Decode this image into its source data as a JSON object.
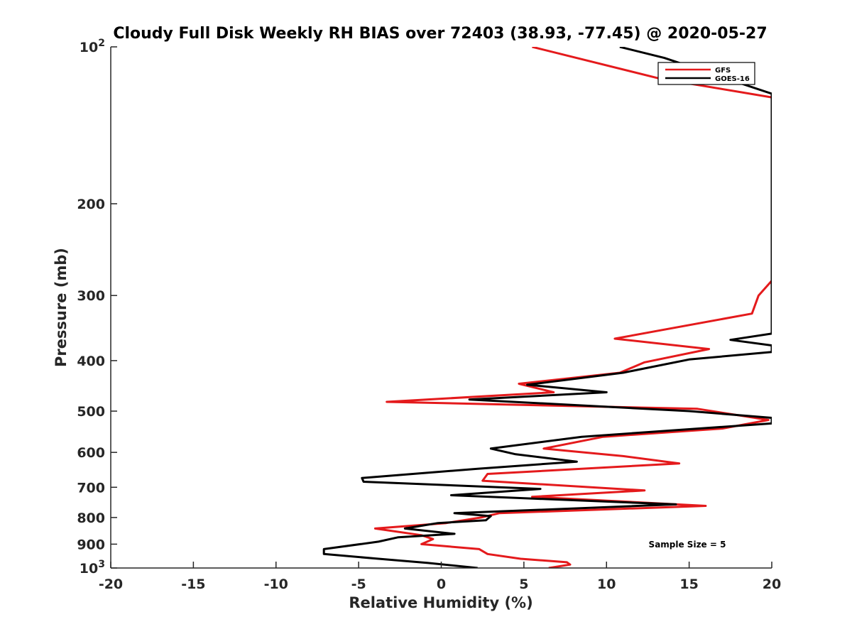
{
  "chart_data": {
    "type": "line",
    "title": "Cloudy Full Disk Weekly RH BIAS over 72403 (38.93, -77.45) @ 2020-05-27",
    "xlabel": "Relative Humidity (%)",
    "ylabel": "Pressure (mb)",
    "xlim": [
      -20,
      20
    ],
    "ylim": [
      100,
      1000
    ],
    "yscale": "log",
    "y_reversed": true,
    "grid": false,
    "legend_position": "top-right",
    "x_ticks": [
      -20,
      -15,
      -10,
      -5,
      0,
      5,
      10,
      15,
      20
    ],
    "x_tick_labels": [
      "-20",
      "-15",
      "-10",
      "-5",
      "0",
      "5",
      "10",
      "15",
      "20"
    ],
    "y_ticks": [
      100,
      200,
      300,
      400,
      500,
      600,
      700,
      800,
      900,
      1000
    ],
    "y_tick_labels": [
      {
        "base": "10",
        "exp": "2"
      },
      {
        "base": "200",
        "exp": ""
      },
      {
        "base": "300",
        "exp": ""
      },
      {
        "base": "400",
        "exp": ""
      },
      {
        "base": "500",
        "exp": ""
      },
      {
        "base": "600",
        "exp": ""
      },
      {
        "base": "700",
        "exp": ""
      },
      {
        "base": "800",
        "exp": ""
      },
      {
        "base": "900",
        "exp": ""
      },
      {
        "base": "10",
        "exp": "3"
      }
    ],
    "annotation": "Sample Size = 5",
    "series": [
      {
        "name": "GFS",
        "color": "#e41a1c",
        "points": [
          [
            5.5,
            100
          ],
          [
            13.2,
            115
          ],
          [
            20.0,
            125
          ],
          [
            20.0,
            281
          ],
          [
            19.2,
            300
          ],
          [
            18.8,
            325
          ],
          [
            10.5,
            363
          ],
          [
            16.2,
            380
          ],
          [
            12.3,
            403
          ],
          [
            10.8,
            422
          ],
          [
            4.7,
            443
          ],
          [
            6.8,
            460
          ],
          [
            -3.3,
            480
          ],
          [
            15.5,
            495
          ],
          [
            19.8,
            520
          ],
          [
            17.0,
            540
          ],
          [
            9.8,
            560
          ],
          [
            6.2,
            590
          ],
          [
            11.0,
            610
          ],
          [
            14.4,
            630
          ],
          [
            2.8,
            660
          ],
          [
            2.5,
            680
          ],
          [
            12.3,
            710
          ],
          [
            5.5,
            730
          ],
          [
            16.0,
            760
          ],
          [
            3.5,
            785
          ],
          [
            2.4,
            800
          ],
          [
            0.3,
            820
          ],
          [
            -4.0,
            840
          ],
          [
            -1.2,
            865
          ],
          [
            -0.5,
            880
          ],
          [
            -1.2,
            900
          ],
          [
            2.3,
            920
          ],
          [
            2.8,
            940
          ],
          [
            4.8,
            960
          ],
          [
            7.6,
            975
          ],
          [
            7.8,
            985
          ],
          [
            6.5,
            1000
          ]
        ]
      },
      {
        "name": "GOES-16",
        "color": "#000000",
        "points": [
          [
            10.8,
            100
          ],
          [
            13.5,
            105
          ],
          [
            20.0,
            123
          ],
          [
            20.0,
            355
          ],
          [
            17.5,
            365
          ],
          [
            20.0,
            374
          ],
          [
            20.0,
            385
          ],
          [
            15.0,
            398
          ],
          [
            11.0,
            422
          ],
          [
            5.2,
            445
          ],
          [
            10.0,
            460
          ],
          [
            1.7,
            475
          ],
          [
            15.0,
            500
          ],
          [
            20.0,
            515
          ],
          [
            20.0,
            528
          ],
          [
            8.5,
            560
          ],
          [
            3.0,
            590
          ],
          [
            4.5,
            605
          ],
          [
            8.2,
            625
          ],
          [
            2.2,
            645
          ],
          [
            -4.8,
            672
          ],
          [
            -4.7,
            683
          ],
          [
            6.0,
            705
          ],
          [
            0.6,
            725
          ],
          [
            14.2,
            755
          ],
          [
            0.8,
            785
          ],
          [
            3.0,
            795
          ],
          [
            2.7,
            810
          ],
          [
            -0.2,
            820
          ],
          [
            -2.2,
            840
          ],
          [
            0.8,
            860
          ],
          [
            -2.6,
            873
          ],
          [
            -3.8,
            890
          ],
          [
            -7.1,
            920
          ],
          [
            -7.1,
            940
          ],
          [
            -3.8,
            960
          ],
          [
            -0.8,
            978
          ],
          [
            2.2,
            1000
          ]
        ]
      }
    ]
  }
}
